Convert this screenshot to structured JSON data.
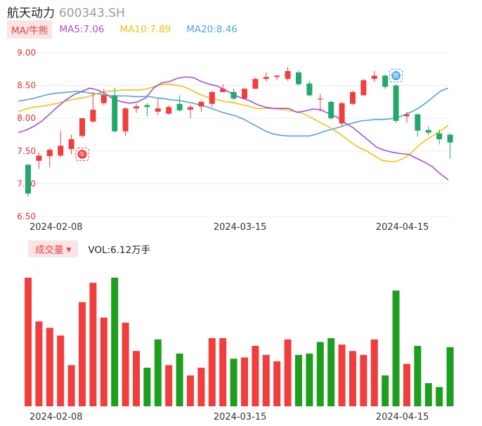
{
  "header": {
    "name": "航天动力",
    "code": "600343.SH"
  },
  "legend": {
    "badge": "MA/牛熊",
    "ma5": "MA5:7.06",
    "ma10": "MA10:7.89",
    "ma20": "MA20:8.46"
  },
  "vol_legend": {
    "badge": "成交量",
    "text": "VOL:6.12万手"
  },
  "markers": {
    "bull": "牛",
    "bear": "熊"
  },
  "colors": {
    "up": "#f23d3d",
    "down": "#22a86b",
    "vol_down": "#1e9e1e",
    "ma5": "#a64fd9",
    "ma10": "#f2c10f",
    "ma20": "#4fa3e8",
    "grid": "#ececec"
  },
  "chart_data": [
    {
      "type": "candlestick",
      "y_ticks": [
        "9.00",
        "8.50",
        "8.00",
        "7.50",
        "7.00",
        "6.50"
      ],
      "ylim": [
        6.5,
        9.0
      ],
      "x_tick_labels": [
        {
          "label": "2024-02-08",
          "index": 2
        },
        {
          "label": "2024-03-15",
          "index": 19
        },
        {
          "label": "2024-04-15",
          "index": 34
        }
      ],
      "candles": [
        [
          7.29,
          6.85,
          7.3,
          6.8
        ],
        [
          7.35,
          7.43,
          7.48,
          7.23
        ],
        [
          7.42,
          7.52,
          7.55,
          7.25
        ],
        [
          7.43,
          7.58,
          7.8,
          7.4
        ],
        [
          7.53,
          7.68,
          7.75,
          7.45
        ],
        [
          7.73,
          8.0,
          8.0,
          7.7
        ],
        [
          7.95,
          8.13,
          8.4,
          7.93
        ],
        [
          8.23,
          8.35,
          8.45,
          8.2
        ],
        [
          8.35,
          7.8,
          8.47,
          7.78
        ],
        [
          7.8,
          8.15,
          8.17,
          7.73
        ],
        [
          8.15,
          8.18,
          8.22,
          8.08
        ],
        [
          8.2,
          8.17,
          8.23,
          8.03
        ],
        [
          8.1,
          8.15,
          8.3,
          8.05
        ],
        [
          8.07,
          8.17,
          8.2,
          8.05
        ],
        [
          8.22,
          8.12,
          8.35,
          8.1
        ],
        [
          8.13,
          8.17,
          8.2,
          8.0
        ],
        [
          8.18,
          8.25,
          8.27,
          8.1
        ],
        [
          8.22,
          8.4,
          8.42,
          8.17
        ],
        [
          8.4,
          8.45,
          8.52,
          8.4
        ],
        [
          8.4,
          8.3,
          8.45,
          8.28
        ],
        [
          8.3,
          8.45,
          8.46,
          8.28
        ],
        [
          8.45,
          8.6,
          8.62,
          8.45
        ],
        [
          8.6,
          8.63,
          8.7,
          8.56
        ],
        [
          8.63,
          8.65,
          8.66,
          8.58
        ],
        [
          8.6,
          8.72,
          8.78,
          8.57
        ],
        [
          8.7,
          8.52,
          8.73,
          8.5
        ],
        [
          8.53,
          8.35,
          8.57,
          8.33
        ],
        [
          8.3,
          8.3,
          8.37,
          8.1
        ],
        [
          8.25,
          8.0,
          8.27,
          7.98
        ],
        [
          7.92,
          8.23,
          8.25,
          7.88
        ],
        [
          8.22,
          8.4,
          8.42,
          8.2
        ],
        [
          8.35,
          8.58,
          8.6,
          8.35
        ],
        [
          8.6,
          8.65,
          8.72,
          8.55
        ],
        [
          8.65,
          8.48,
          8.67,
          8.45
        ],
        [
          8.5,
          7.96,
          8.52,
          7.93
        ],
        [
          8.03,
          8.06,
          8.1,
          7.93
        ],
        [
          8.06,
          7.81,
          8.07,
          7.72
        ],
        [
          7.82,
          7.78,
          7.88,
          7.74
        ],
        [
          7.77,
          7.68,
          7.83,
          7.6
        ],
        [
          7.75,
          7.63,
          7.77,
          7.38
        ]
      ],
      "ma5": [
        7.78,
        7.82,
        7.88,
        7.96,
        8.07,
        8.18,
        8.28,
        8.36,
        8.41,
        8.46,
        8.43,
        8.37,
        8.29,
        8.25,
        8.23,
        8.25,
        8.31,
        8.46,
        8.54,
        8.56,
        8.61,
        8.63,
        8.62,
        8.56,
        8.52,
        8.49,
        8.43,
        8.36,
        8.31,
        8.27,
        8.21,
        8.17,
        8.15,
        8.15,
        8.15,
        8.09,
        8.11,
        8.14,
        8.13,
        8.07,
        8.02,
        7.93,
        7.86,
        7.76,
        7.66,
        7.56,
        7.51,
        7.48,
        7.46,
        7.45,
        7.39,
        7.33,
        7.26,
        7.15,
        7.06
      ],
      "ma10": [
        8.1,
        8.14,
        8.17,
        8.18,
        8.2,
        8.22,
        8.25,
        8.28,
        8.3,
        8.32,
        8.35,
        8.39,
        8.41,
        8.42,
        8.43,
        8.43,
        8.43,
        8.44,
        8.47,
        8.51,
        8.52,
        8.51,
        8.49,
        8.45,
        8.39,
        8.34,
        8.31,
        8.28,
        8.25,
        8.24,
        8.21,
        8.19,
        8.15,
        8.15,
        8.15,
        8.14,
        8.13,
        8.11,
        8.09,
        8.04,
        7.98,
        7.92,
        7.86,
        7.79,
        7.71,
        7.62,
        7.55,
        7.5,
        7.43,
        7.36,
        7.34,
        7.34,
        7.39,
        7.47,
        7.58,
        7.67,
        7.74,
        7.81,
        7.89
      ],
      "ma20": [
        8.26,
        8.28,
        8.3,
        8.33,
        8.36,
        8.38,
        8.39,
        8.4,
        8.41,
        8.4,
        8.38,
        8.37,
        8.35,
        8.34,
        8.34,
        8.34,
        8.33,
        8.33,
        8.33,
        8.31,
        8.3,
        8.28,
        8.27,
        8.25,
        8.23,
        8.2,
        8.17,
        8.13,
        8.09,
        8.06,
        8.03,
        7.98,
        7.92,
        7.86,
        7.8,
        7.76,
        7.74,
        7.73,
        7.73,
        7.73,
        7.73,
        7.76,
        7.8,
        7.83,
        7.86,
        7.9,
        7.93,
        7.96,
        7.97,
        7.98,
        7.98,
        7.99,
        8.01,
        8.05,
        8.1,
        8.16,
        8.24,
        8.33,
        8.42,
        8.46
      ]
    },
    {
      "type": "bar",
      "series_name": "VOL",
      "values": [
        100,
        66,
        61,
        55,
        32,
        81,
        96,
        69,
        100,
        65,
        43,
        30,
        52,
        32,
        41,
        24,
        30,
        53,
        53,
        37,
        38,
        47,
        40,
        35,
        52,
        40,
        41,
        50,
        53,
        48,
        43,
        40,
        52,
        24,
        90,
        33,
        47,
        18,
        15,
        46
      ],
      "up": [
        true,
        true,
        true,
        true,
        true,
        true,
        true,
        true,
        false,
        true,
        true,
        false,
        false,
        true,
        false,
        true,
        true,
        true,
        true,
        false,
        true,
        true,
        true,
        true,
        true,
        false,
        false,
        false,
        false,
        true,
        true,
        true,
        true,
        false,
        false,
        true,
        false,
        false,
        false,
        false
      ]
    }
  ]
}
